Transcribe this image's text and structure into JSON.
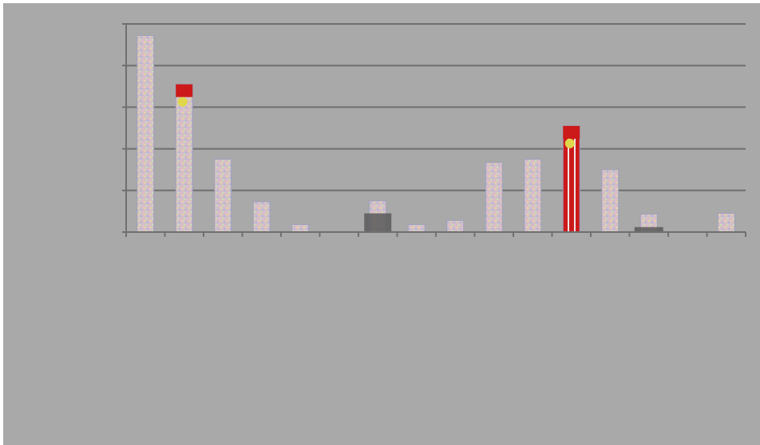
{
  "chart_data": {
    "type": "bar",
    "title": "",
    "xlabel": "",
    "ylabel": "",
    "ylim": [
      0,
      5
    ],
    "grid": true,
    "categories": [
      "",
      "",
      "",
      "",
      "",
      "",
      "",
      "",
      "",
      "",
      "",
      "",
      "",
      "",
      "",
      ""
    ],
    "series": [
      {
        "values": [
          4.72,
          3.55,
          1.75,
          0.73,
          0.18,
          0,
          0.75,
          0.18,
          0.28,
          1.67,
          1.75,
          2.55,
          1.5,
          0.43,
          0,
          0.45
        ]
      }
    ],
    "highlight": {
      "color": "#cc1a1a",
      "secondary": "#e0d84a",
      "indices": [
        1,
        11
      ]
    },
    "colors": {
      "background": "#a9a9a9",
      "axis": "#6f6f6f",
      "bar_fill": "#d4bfc6",
      "bar_edge": "#9b9fbf",
      "dark_base": "#5a5a5a"
    }
  }
}
